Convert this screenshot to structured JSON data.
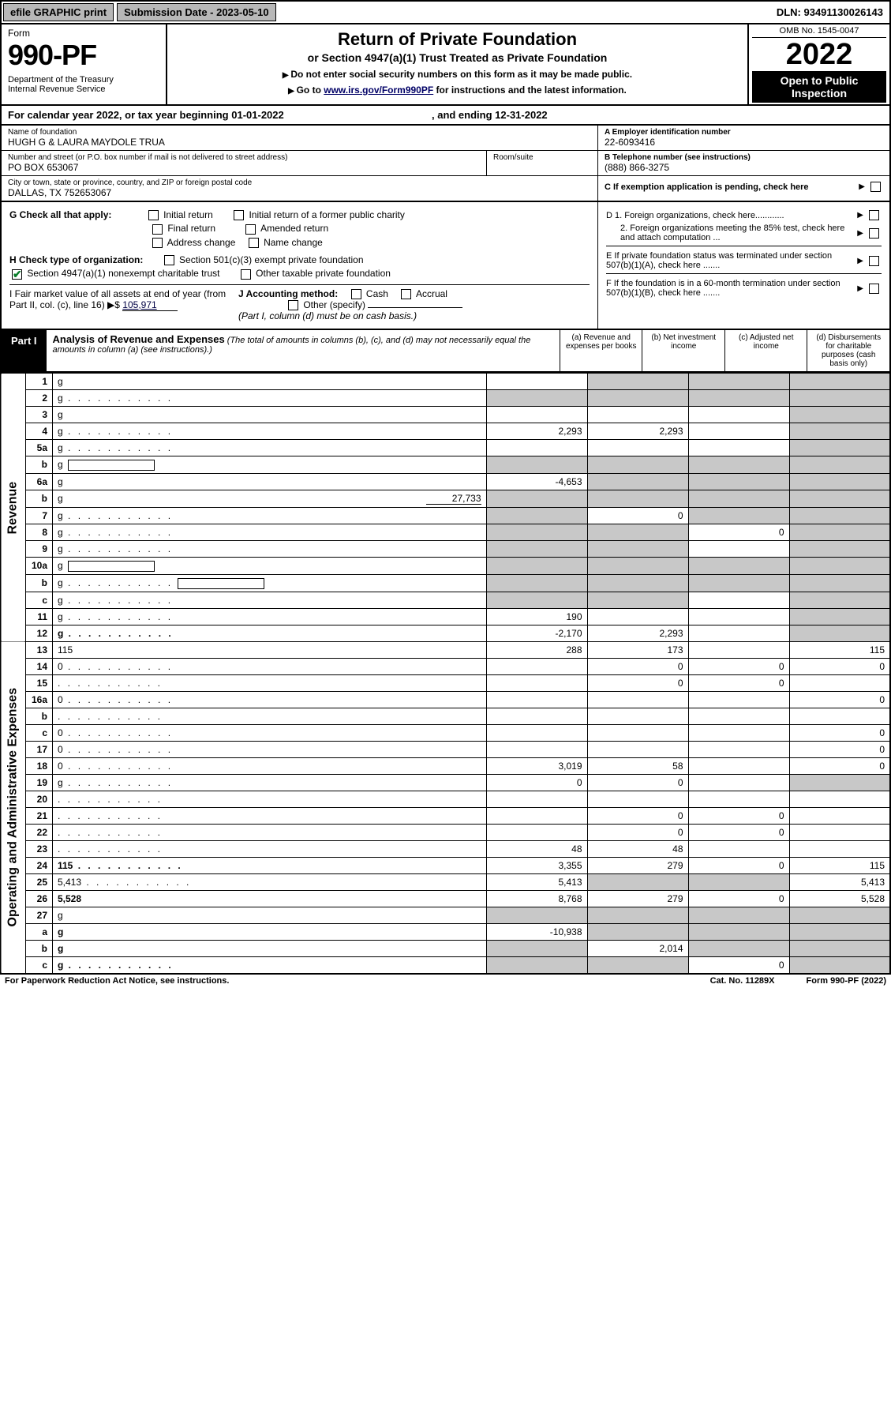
{
  "topbar": {
    "efile": "efile GRAPHIC print",
    "subdate_label": "Submission Date - 2023-05-10",
    "dln": "DLN: 93491130026143"
  },
  "header": {
    "form_word": "Form",
    "form_no": "990-PF",
    "dept": "Department of the Treasury\nInternal Revenue Service",
    "title": "Return of Private Foundation",
    "subtitle": "or Section 4947(a)(1) Trust Treated as Private Foundation",
    "note1": "Do not enter social security numbers on this form as it may be made public.",
    "note2_pre": "Go to ",
    "note2_link": "www.irs.gov/Form990PF",
    "note2_post": " for instructions and the latest information.",
    "omb": "OMB No. 1545-0047",
    "year": "2022",
    "open": "Open to Public Inspection"
  },
  "calrow": {
    "pre": "For calendar year 2022, or tax year beginning ",
    "begin": "01-01-2022",
    "mid": " , and ending ",
    "end": "12-31-2022"
  },
  "meta": {
    "name_lbl": "Name of foundation",
    "name": "HUGH G & LAURA MAYDOLE TRUA",
    "addr_lbl": "Number and street (or P.O. box number if mail is not delivered to street address)",
    "addr": "PO BOX 653067",
    "room_lbl": "Room/suite",
    "city_lbl": "City or town, state or province, country, and ZIP or foreign postal code",
    "city": "DALLAS, TX  752653067",
    "ein_lbl": "A Employer identification number",
    "ein": "22-6093416",
    "tel_lbl": "B Telephone number (see instructions)",
    "tel": "(888) 866-3275",
    "c": "C If exemption application is pending, check here",
    "d1": "D 1. Foreign organizations, check here............",
    "d2": "2. Foreign organizations meeting the 85% test, check here and attach computation ...",
    "e": "E  If private foundation status was terminated under section 507(b)(1)(A), check here .......",
    "f": "F  If the foundation is in a 60-month termination under section 507(b)(1)(B), check here .......",
    "g_lbl": "G Check all that apply:",
    "g_opts": [
      "Initial return",
      "Initial return of a former public charity",
      "Final return",
      "Amended return",
      "Address change",
      "Name change"
    ],
    "h_lbl": "H Check type of organization:",
    "h_opts": [
      "Section 501(c)(3) exempt private foundation",
      "Section 4947(a)(1) nonexempt charitable trust",
      "Other taxable private foundation"
    ],
    "i_lbl": "I Fair market value of all assets at end of year (from Part II, col. (c), line 16) ▶$",
    "i_val": "105,971",
    "j_lbl": "J Accounting method:",
    "j_opts": [
      "Cash",
      "Accrual",
      "Other (specify)"
    ],
    "j_note": "(Part I, column (d) must be on cash basis.)"
  },
  "part1": {
    "label": "Part I",
    "title": "Analysis of Revenue and Expenses",
    "sub": " (The total of amounts in columns (b), (c), and (d) may not necessarily equal the amounts in column (a) (see instructions).)",
    "col_a": "(a)  Revenue and expenses per books",
    "col_b": "(b)  Net investment income",
    "col_c": "(c)  Adjusted net income",
    "col_d": "(d)  Disbursements for charitable purposes (cash basis only)",
    "side_rev": "Revenue",
    "side_exp": "Operating and Administrative Expenses"
  },
  "rows": [
    {
      "n": "1",
      "d": "g",
      "a": "",
      "b": "g",
      "c": "g"
    },
    {
      "n": "2",
      "d": "g",
      "a": "g",
      "b": "g",
      "c": "g",
      "dots": true
    },
    {
      "n": "3",
      "d": "g",
      "a": "",
      "b": "",
      "c": ""
    },
    {
      "n": "4",
      "d": "g",
      "a": "2,293",
      "b": "2,293",
      "c": "",
      "dots": true
    },
    {
      "n": "5a",
      "d": "g",
      "a": "",
      "b": "",
      "c": "",
      "dots": true
    },
    {
      "n": "b",
      "d": "g",
      "a": "g",
      "b": "g",
      "c": "g",
      "inbar": true
    },
    {
      "n": "6a",
      "d": "g",
      "a": "-4,653",
      "b": "g",
      "c": "g"
    },
    {
      "n": "b",
      "d": "g",
      "extra": "27,733",
      "a": "g",
      "b": "g",
      "c": "g"
    },
    {
      "n": "7",
      "d": "g",
      "a": "g",
      "b": "0",
      "c": "g",
      "dots": true
    },
    {
      "n": "8",
      "d": "g",
      "a": "g",
      "b": "g",
      "c": "0",
      "dots": true
    },
    {
      "n": "9",
      "d": "g",
      "a": "g",
      "b": "g",
      "c": "",
      "dots": true
    },
    {
      "n": "10a",
      "d": "g",
      "a": "g",
      "b": "g",
      "c": "g",
      "inbar": true
    },
    {
      "n": "b",
      "d": "g",
      "a": "g",
      "b": "g",
      "c": "g",
      "inbar": true,
      "dots": true
    },
    {
      "n": "c",
      "d": "g",
      "a": "g",
      "b": "g",
      "c": "",
      "dots": true
    },
    {
      "n": "11",
      "d": "g",
      "a": "190",
      "b": "",
      "c": "",
      "dots": true
    },
    {
      "n": "12",
      "d": "g",
      "a": "-2,170",
      "b": "2,293",
      "c": "",
      "bold": true,
      "dots": true
    }
  ],
  "exp_rows": [
    {
      "n": "13",
      "d": "115",
      "a": "288",
      "b": "173",
      "c": ""
    },
    {
      "n": "14",
      "d": "0",
      "a": "",
      "b": "0",
      "c": "0",
      "dots": true
    },
    {
      "n": "15",
      "d": "",
      "a": "",
      "b": "0",
      "c": "0",
      "dots": true
    },
    {
      "n": "16a",
      "d": "0",
      "a": "",
      "b": "",
      "c": "",
      "dots": true
    },
    {
      "n": "b",
      "d": "",
      "a": "",
      "b": "",
      "c": "",
      "dots": true
    },
    {
      "n": "c",
      "d": "0",
      "a": "",
      "b": "",
      "c": "",
      "dots": true
    },
    {
      "n": "17",
      "d": "0",
      "a": "",
      "b": "",
      "c": "",
      "dots": true
    },
    {
      "n": "18",
      "d": "0",
      "a": "3,019",
      "b": "58",
      "c": "",
      "dots": true
    },
    {
      "n": "19",
      "d": "g",
      "a": "0",
      "b": "0",
      "c": "",
      "dots": true
    },
    {
      "n": "20",
      "d": "",
      "a": "",
      "b": "",
      "c": "",
      "dots": true
    },
    {
      "n": "21",
      "d": "",
      "a": "",
      "b": "0",
      "c": "0",
      "dots": true
    },
    {
      "n": "22",
      "d": "",
      "a": "",
      "b": "0",
      "c": "0",
      "dots": true
    },
    {
      "n": "23",
      "d": "",
      "a": "48",
      "b": "48",
      "c": "",
      "dots": true
    },
    {
      "n": "24",
      "d": "115",
      "a": "3,355",
      "b": "279",
      "c": "0",
      "bold": true,
      "dots": true
    },
    {
      "n": "25",
      "d": "5,413",
      "a": "5,413",
      "b": "g",
      "c": "g",
      "dots": true
    },
    {
      "n": "26",
      "d": "5,528",
      "a": "8,768",
      "b": "279",
      "c": "0",
      "bold": true
    },
    {
      "n": "27",
      "d": "g",
      "a": "g",
      "b": "g",
      "c": "g"
    },
    {
      "n": "a",
      "d": "g",
      "a": "-10,938",
      "b": "g",
      "c": "g",
      "bold": true
    },
    {
      "n": "b",
      "d": "g",
      "a": "g",
      "b": "2,014",
      "c": "g",
      "bold": true
    },
    {
      "n": "c",
      "d": "g",
      "a": "g",
      "b": "g",
      "c": "0",
      "bold": true,
      "dots": true
    }
  ],
  "footer": {
    "left": "For Paperwork Reduction Act Notice, see instructions.",
    "mid": "Cat. No. 11289X",
    "right": "Form 990-PF (2022)"
  }
}
